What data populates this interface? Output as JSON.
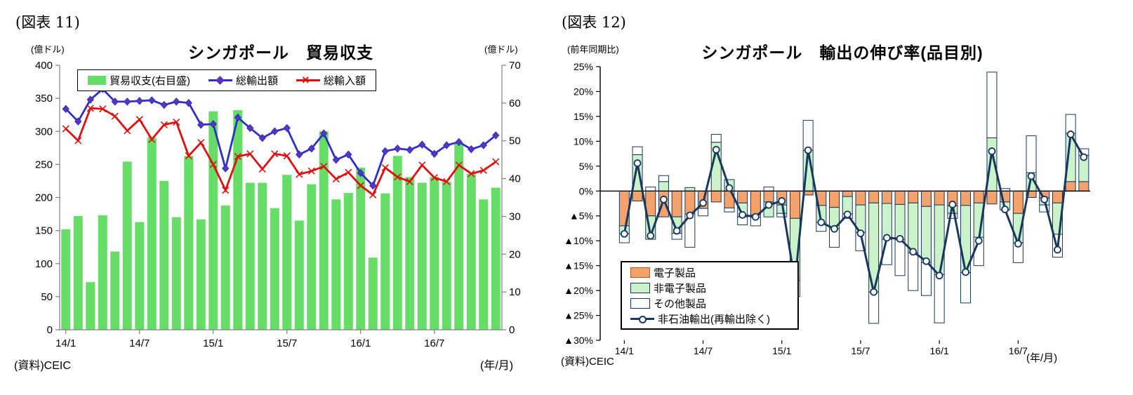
{
  "figure11": {
    "tag": "(図表 11)",
    "title": "シンガポール　貿易収支",
    "unit_left": "(億ドル)",
    "unit_right": "(億ドル)",
    "source": "(資料)CEIC",
    "xaxis_unit": "(年/月)"
  },
  "figure12": {
    "tag": "(図表 12)",
    "title": "シンガポール　輸出の伸び率(品目別)",
    "unit_left": "(前年同期比)",
    "source": "(資料)CEIC",
    "xaxis_unit": "(年/月)"
  },
  "chart_data": [
    {
      "type": "bar",
      "subtype": "bar-line-combo",
      "title": "シンガポール 貿易収支",
      "months": [
        "14/1",
        "14/2",
        "14/3",
        "14/4",
        "14/5",
        "14/6",
        "14/7",
        "14/8",
        "14/9",
        "14/10",
        "14/11",
        "14/12",
        "15/1",
        "15/2",
        "15/3",
        "15/4",
        "15/5",
        "15/6",
        "15/7",
        "15/8",
        "15/9",
        "15/10",
        "15/11",
        "15/12",
        "16/1",
        "16/2",
        "16/3",
        "16/4",
        "16/5",
        "16/6",
        "16/7",
        "16/8",
        "16/9",
        "16/10",
        "16/11",
        "16/12"
      ],
      "x_tick_labels": [
        "14/1",
        "14/7",
        "15/1",
        "15/7",
        "16/1",
        "16/7"
      ],
      "x_tick_positions": [
        0,
        6,
        12,
        18,
        24,
        30
      ],
      "left_axis": {
        "min": 0,
        "max": 400,
        "step": 50,
        "unit": "億ドル",
        "tick_labels": [
          "400",
          "350",
          "300",
          "250",
          "200",
          "150",
          "100",
          "50",
          "0"
        ]
      },
      "right_axis": {
        "min": 0,
        "max": 70,
        "step": 10,
        "unit": "億ドル",
        "tick_labels": [
          "70",
          "60",
          "50",
          "40",
          "30",
          "20",
          "10",
          "0"
        ]
      },
      "grid": false,
      "legend_position": "top-inside",
      "series": [
        {
          "name": "貿易収支(右目盛)",
          "type": "bar",
          "axis": "right",
          "color": "#66DD66",
          "values": [
            26.6,
            30.1,
            12.6,
            30.3,
            20.7,
            44.5,
            28.5,
            50.8,
            39.4,
            29.8,
            46.0,
            29.2,
            57.8,
            32.9,
            58.1,
            38.9,
            38.9,
            32.2,
            41.0,
            28.9,
            38.5,
            52.5,
            34.5,
            36.2,
            42.9,
            19.1,
            36.1,
            46.0,
            40.4,
            38.9,
            40.4,
            39.2,
            49.5,
            41.3,
            34.5,
            37.6
          ]
        },
        {
          "name": "総輸出額",
          "type": "line",
          "axis": "left",
          "color": "#2E2EC8",
          "marker": "diamond",
          "marker_color": "#5B35B8",
          "values": [
            334,
            315,
            348,
            364,
            345,
            345,
            346,
            347,
            340,
            345,
            343,
            310,
            311,
            244,
            321,
            305,
            290,
            300,
            305,
            265,
            274,
            297,
            257,
            265,
            237,
            218,
            270,
            274,
            272,
            280,
            266,
            279,
            284,
            273,
            279,
            294
          ]
        },
        {
          "name": "総輸入額",
          "type": "line",
          "axis": "left",
          "color": "#E01010",
          "marker": "x",
          "marker_color": "#E01010",
          "values": [
            304,
            286,
            335,
            334,
            323,
            301,
            318,
            288,
            310,
            314,
            263,
            283,
            250,
            211,
            262,
            266,
            243,
            266,
            263,
            235,
            240,
            247,
            228,
            238,
            218,
            204,
            245,
            231,
            224,
            249,
            230,
            224,
            249,
            236,
            241,
            254
          ]
        }
      ]
    },
    {
      "type": "bar",
      "subtype": "stacked-bar-line-combo",
      "title": "シンガポール 輸出の伸び率(品目別)",
      "months": [
        "14/1",
        "14/2",
        "14/3",
        "14/4",
        "14/5",
        "14/6",
        "14/7",
        "14/8",
        "14/9",
        "14/10",
        "14/11",
        "14/12",
        "15/1",
        "15/2",
        "15/3",
        "15/4",
        "15/5",
        "15/6",
        "15/7",
        "15/8",
        "15/9",
        "15/10",
        "15/11",
        "15/12",
        "16/1",
        "16/2",
        "16/3",
        "16/4",
        "16/5",
        "16/6",
        "16/7",
        "16/8",
        "16/9",
        "16/10",
        "16/11",
        "16/12"
      ],
      "x_tick_labels": [
        "14/1",
        "14/7",
        "15/1",
        "15/7",
        "16/1",
        "16/7"
      ],
      "x_tick_positions": [
        0,
        6,
        12,
        18,
        24,
        30
      ],
      "y_axis": {
        "min": -30,
        "max": 25,
        "step": 5,
        "unit": "%",
        "format": "percent-triangle-negative",
        "tick_labels": [
          "25%",
          "20%",
          "15%",
          "10%",
          "5%",
          "0%",
          "▲5%",
          "▲10%",
          "▲15%",
          "▲20%",
          "▲25%",
          "▲30%"
        ]
      },
      "grid": false,
      "legend_position": "bottom-left-inside",
      "series": [
        {
          "name": "電子製品",
          "type": "bar-stacked",
          "color": "#F4A26C",
          "border": "#17375E",
          "values": [
            -7.0,
            -2.0,
            -5.0,
            -5.2,
            -5.2,
            -4.6,
            -3.5,
            -2.2,
            -3.4,
            -2.4,
            -4.8,
            -2.2,
            -2.8,
            -5.5,
            -0.8,
            -2.9,
            -3.3,
            -1.1,
            -2.8,
            -2.4,
            -2.5,
            -2.7,
            -2.4,
            -3.1,
            -2.8,
            -3.0,
            -2.9,
            -2.4,
            -2.6,
            -2.2,
            -4.5,
            -1.3,
            -1.4,
            -2.4,
            1.9,
            1.9
          ]
        },
        {
          "name": "非電子製品",
          "type": "bar-stacked",
          "color": "#CCF2CC",
          "border": "#17375E",
          "values": [
            -1.6,
            7.3,
            -4.7,
            1.9,
            -3.3,
            0.7,
            0.0,
            9.8,
            2.3,
            -2.8,
            -0.5,
            -3.0,
            -1.7,
            -12.5,
            8.2,
            -3.4,
            -4.3,
            -3.5,
            -5.5,
            -17.9,
            -7.2,
            -7.1,
            -10.0,
            -11.3,
            -14.0,
            -1.5,
            -13.5,
            -6.9,
            10.7,
            -1.6,
            -5.9,
            3.7,
            -1.4,
            -6.3,
            9.7,
            5.3
          ]
        },
        {
          "name": "その他製品",
          "type": "bar-stacked",
          "color": "#FFFFFF",
          "border": "#17375E",
          "values": [
            -1.8,
            1.6,
            0.8,
            1.2,
            -1.2,
            -6.7,
            -1.5,
            1.6,
            -0.8,
            -1.6,
            -1.7,
            0.8,
            -0.7,
            -3.2,
            6.0,
            -1.8,
            -3.7,
            -0.9,
            -3.7,
            -6.3,
            -5.1,
            -7.2,
            -7.6,
            -6.6,
            -9.7,
            -1.0,
            -6.1,
            -5.7,
            13.2,
            0.5,
            -4.0,
            7.4,
            -1.4,
            -4.6,
            3.8,
            1.3
          ]
        },
        {
          "name": "非石油輸出(再輸出除く)",
          "type": "line",
          "color": "#17375E",
          "marker": "circle",
          "marker_color": "#FFFFFF",
          "values": [
            -8.6,
            5.6,
            -9.0,
            -1.7,
            -8.0,
            -4.9,
            -2.4,
            8.3,
            0.6,
            -4.8,
            -5.2,
            -2.8,
            -2.0,
            -18.3,
            8.2,
            -6.3,
            -7.6,
            -4.7,
            -8.5,
            -20.3,
            -9.4,
            -9.6,
            -12.2,
            -14.1,
            -17.0,
            -2.7,
            -16.3,
            -10.0,
            8.0,
            -3.7,
            -10.6,
            3.0,
            -1.7,
            -11.8,
            11.4,
            6.8
          ]
        }
      ]
    }
  ]
}
